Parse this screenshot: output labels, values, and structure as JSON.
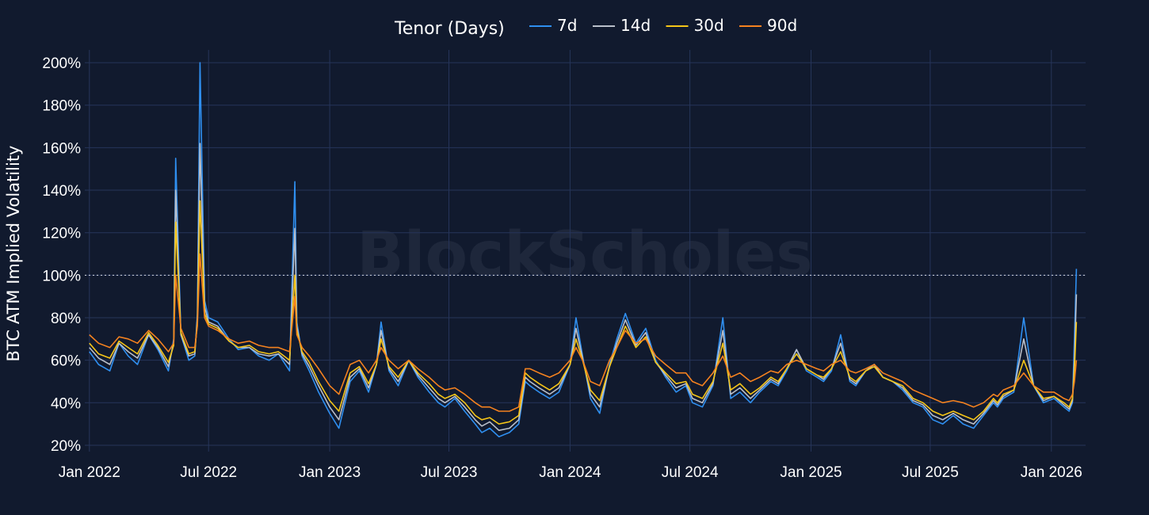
{
  "chart_data": {
    "type": "line",
    "title": "",
    "ylabel": "BTC ATM Implied Volatility",
    "xlabel": "",
    "ylim": [
      17,
      206
    ],
    "xlim": [
      "2021-12-25",
      "2026-02-22"
    ],
    "y_ticks": [
      20,
      40,
      60,
      80,
      100,
      120,
      140,
      160,
      180,
      200
    ],
    "y_tick_labels": [
      "20%",
      "40%",
      "60%",
      "80%",
      "100%",
      "120%",
      "140%",
      "160%",
      "180%",
      "200%"
    ],
    "x_ticks": [
      "2022-01-01",
      "2022-07-01",
      "2023-01-01",
      "2023-07-01",
      "2024-01-01",
      "2024-07-01",
      "2025-01-01",
      "2025-07-01",
      "2026-01-01"
    ],
    "x_tick_labels": [
      "Jan 2022",
      "Jul 2022",
      "Jan 2023",
      "Jul 2023",
      "Jan 2024",
      "Jul 2024",
      "Jan 2025",
      "Jul 2025",
      "Jan 2026"
    ],
    "reference_line": {
      "y": 100,
      "style": "dotted"
    },
    "grid": true,
    "legend": {
      "title": "Tenor (Days)",
      "placement": "top-center"
    },
    "watermark": "BlockScholes",
    "background": "#111a2e",
    "grid_color": "#26355a",
    "series": [
      {
        "name": "7d",
        "color": "#2f8ff0",
        "x": [
          "2022-01-01",
          "2022-01-15",
          "2022-02-01",
          "2022-02-15",
          "2022-03-01",
          "2022-03-15",
          "2022-04-01",
          "2022-04-15",
          "2022-05-01",
          "2022-05-09",
          "2022-05-12",
          "2022-05-20",
          "2022-06-01",
          "2022-06-10",
          "2022-06-14",
          "2022-06-18",
          "2022-06-25",
          "2022-07-01",
          "2022-07-15",
          "2022-08-01",
          "2022-08-15",
          "2022-09-01",
          "2022-09-15",
          "2022-10-01",
          "2022-10-15",
          "2022-11-01",
          "2022-11-09",
          "2022-11-12",
          "2022-11-20",
          "2022-12-01",
          "2022-12-15",
          "2023-01-01",
          "2023-01-15",
          "2023-02-01",
          "2023-02-15",
          "2023-03-01",
          "2023-03-13",
          "2023-03-20",
          "2023-04-01",
          "2023-04-15",
          "2023-05-01",
          "2023-05-15",
          "2023-06-01",
          "2023-06-15",
          "2023-06-25",
          "2023-07-10",
          "2023-07-25",
          "2023-08-10",
          "2023-08-20",
          "2023-09-01",
          "2023-09-15",
          "2023-10-01",
          "2023-10-15",
          "2023-10-25",
          "2023-11-01",
          "2023-11-15",
          "2023-12-01",
          "2023-12-15",
          "2024-01-01",
          "2024-01-10",
          "2024-01-20",
          "2024-02-01",
          "2024-02-15",
          "2024-03-01",
          "2024-03-12",
          "2024-03-25",
          "2024-04-10",
          "2024-04-25",
          "2024-05-10",
          "2024-05-25",
          "2024-06-10",
          "2024-06-25",
          "2024-07-05",
          "2024-07-20",
          "2024-08-05",
          "2024-08-20",
          "2024-09-01",
          "2024-09-15",
          "2024-10-01",
          "2024-10-15",
          "2024-11-01",
          "2024-11-12",
          "2024-11-25",
          "2024-12-10",
          "2024-12-25",
          "2025-01-10",
          "2025-01-20",
          "2025-02-01",
          "2025-02-15",
          "2025-03-01",
          "2025-03-10",
          "2025-03-25",
          "2025-04-07",
          "2025-04-20",
          "2025-05-05",
          "2025-05-20",
          "2025-06-05",
          "2025-06-20",
          "2025-07-05",
          "2025-07-20",
          "2025-08-05",
          "2025-08-20",
          "2025-09-05",
          "2025-09-20",
          "2025-10-05",
          "2025-10-11",
          "2025-10-20",
          "2025-11-05",
          "2025-11-20",
          "2025-12-05",
          "2025-12-20",
          "2026-01-05",
          "2026-01-20",
          "2026-01-28",
          "2026-02-02",
          "2026-02-05",
          "2026-02-08"
        ],
        "y": [
          64,
          58,
          55,
          68,
          62,
          58,
          72,
          65,
          55,
          70,
          155,
          72,
          60,
          62,
          82,
          200,
          88,
          80,
          78,
          70,
          65,
          66,
          62,
          60,
          63,
          55,
          144,
          78,
          62,
          55,
          45,
          35,
          28,
          50,
          55,
          45,
          58,
          78,
          55,
          48,
          60,
          52,
          45,
          40,
          38,
          42,
          36,
          30,
          26,
          28,
          24,
          26,
          30,
          50,
          48,
          45,
          42,
          45,
          58,
          80,
          62,
          42,
          35,
          58,
          70,
          82,
          68,
          75,
          60,
          52,
          45,
          48,
          40,
          38,
          48,
          80,
          42,
          45,
          40,
          45,
          50,
          48,
          55,
          65,
          55,
          52,
          50,
          55,
          72,
          50,
          48,
          55,
          58,
          52,
          50,
          46,
          40,
          38,
          32,
          30,
          34,
          30,
          28,
          34,
          40,
          38,
          42,
          45,
          80,
          48,
          40,
          42,
          38,
          36,
          40,
          70,
          103
        ]
      },
      {
        "name": "14d",
        "color": "#b9bfca",
        "x": [
          "2022-01-01",
          "2022-01-15",
          "2022-02-01",
          "2022-02-15",
          "2022-03-01",
          "2022-03-15",
          "2022-04-01",
          "2022-04-15",
          "2022-05-01",
          "2022-05-09",
          "2022-05-12",
          "2022-05-20",
          "2022-06-01",
          "2022-06-10",
          "2022-06-14",
          "2022-06-18",
          "2022-06-25",
          "2022-07-01",
          "2022-07-15",
          "2022-08-01",
          "2022-08-15",
          "2022-09-01",
          "2022-09-15",
          "2022-10-01",
          "2022-10-15",
          "2022-11-01",
          "2022-11-09",
          "2022-11-12",
          "2022-11-20",
          "2022-12-01",
          "2022-12-15",
          "2023-01-01",
          "2023-01-15",
          "2023-02-01",
          "2023-02-15",
          "2023-03-01",
          "2023-03-13",
          "2023-03-20",
          "2023-04-01",
          "2023-04-15",
          "2023-05-01",
          "2023-05-15",
          "2023-06-01",
          "2023-06-15",
          "2023-06-25",
          "2023-07-10",
          "2023-07-25",
          "2023-08-10",
          "2023-08-20",
          "2023-09-01",
          "2023-09-15",
          "2023-10-01",
          "2023-10-15",
          "2023-10-25",
          "2023-11-01",
          "2023-11-15",
          "2023-12-01",
          "2023-12-15",
          "2024-01-01",
          "2024-01-10",
          "2024-01-20",
          "2024-02-01",
          "2024-02-15",
          "2024-03-01",
          "2024-03-12",
          "2024-03-25",
          "2024-04-10",
          "2024-04-25",
          "2024-05-10",
          "2024-05-25",
          "2024-06-10",
          "2024-06-25",
          "2024-07-05",
          "2024-07-20",
          "2024-08-05",
          "2024-08-20",
          "2024-09-01",
          "2024-09-15",
          "2024-10-01",
          "2024-10-15",
          "2024-11-01",
          "2024-11-12",
          "2024-11-25",
          "2024-12-10",
          "2024-12-25",
          "2025-01-10",
          "2025-01-20",
          "2025-02-01",
          "2025-02-15",
          "2025-03-01",
          "2025-03-10",
          "2025-03-25",
          "2025-04-07",
          "2025-04-20",
          "2025-05-05",
          "2025-05-20",
          "2025-06-05",
          "2025-06-20",
          "2025-07-05",
          "2025-07-20",
          "2025-08-05",
          "2025-08-20",
          "2025-09-05",
          "2025-09-20",
          "2025-10-05",
          "2025-10-11",
          "2025-10-20",
          "2025-11-05",
          "2025-11-20",
          "2025-12-05",
          "2025-12-20",
          "2026-01-05",
          "2026-01-20",
          "2026-01-28",
          "2026-02-02",
          "2026-02-05",
          "2026-02-08"
        ],
        "y": [
          66,
          61,
          58,
          68,
          64,
          61,
          72,
          66,
          57,
          68,
          140,
          72,
          62,
          63,
          80,
          162,
          85,
          78,
          76,
          69,
          66,
          66,
          63,
          62,
          63,
          58,
          122,
          76,
          63,
          57,
          48,
          38,
          32,
          52,
          56,
          47,
          58,
          74,
          56,
          50,
          60,
          53,
          47,
          42,
          40,
          43,
          38,
          32,
          29,
          31,
          27,
          28,
          32,
          52,
          50,
          47,
          44,
          47,
          58,
          75,
          61,
          44,
          38,
          57,
          68,
          79,
          67,
          73,
          59,
          53,
          47,
          49,
          42,
          40,
          49,
          74,
          44,
          47,
          42,
          46,
          51,
          49,
          56,
          65,
          56,
          53,
          51,
          56,
          68,
          51,
          49,
          55,
          58,
          52,
          50,
          47,
          41,
          39,
          34,
          32,
          35,
          32,
          30,
          35,
          41,
          39,
          43,
          46,
          70,
          48,
          41,
          43,
          39,
          37,
          41,
          60,
          91
        ]
      },
      {
        "name": "30d",
        "color": "#f5c518",
        "x": [
          "2022-01-01",
          "2022-01-15",
          "2022-02-01",
          "2022-02-15",
          "2022-03-01",
          "2022-03-15",
          "2022-04-01",
          "2022-04-15",
          "2022-05-01",
          "2022-05-09",
          "2022-05-12",
          "2022-05-20",
          "2022-06-01",
          "2022-06-10",
          "2022-06-14",
          "2022-06-18",
          "2022-06-25",
          "2022-07-01",
          "2022-07-15",
          "2022-08-01",
          "2022-08-15",
          "2022-09-01",
          "2022-09-15",
          "2022-10-01",
          "2022-10-15",
          "2022-11-01",
          "2022-11-09",
          "2022-11-12",
          "2022-11-20",
          "2022-12-01",
          "2022-12-15",
          "2023-01-01",
          "2023-01-15",
          "2023-02-01",
          "2023-02-15",
          "2023-03-01",
          "2023-03-13",
          "2023-03-20",
          "2023-04-01",
          "2023-04-15",
          "2023-05-01",
          "2023-05-15",
          "2023-06-01",
          "2023-06-15",
          "2023-06-25",
          "2023-07-10",
          "2023-07-25",
          "2023-08-10",
          "2023-08-20",
          "2023-09-01",
          "2023-09-15",
          "2023-10-01",
          "2023-10-15",
          "2023-10-25",
          "2023-11-01",
          "2023-11-15",
          "2023-12-01",
          "2023-12-15",
          "2024-01-01",
          "2024-01-10",
          "2024-01-20",
          "2024-02-01",
          "2024-02-15",
          "2024-03-01",
          "2024-03-12",
          "2024-03-25",
          "2024-04-10",
          "2024-04-25",
          "2024-05-10",
          "2024-05-25",
          "2024-06-10",
          "2024-06-25",
          "2024-07-05",
          "2024-07-20",
          "2024-08-05",
          "2024-08-20",
          "2024-09-01",
          "2024-09-15",
          "2024-10-01",
          "2024-10-15",
          "2024-11-01",
          "2024-11-12",
          "2024-11-25",
          "2024-12-10",
          "2024-12-25",
          "2025-01-10",
          "2025-01-20",
          "2025-02-01",
          "2025-02-15",
          "2025-03-01",
          "2025-03-10",
          "2025-03-25",
          "2025-04-07",
          "2025-04-20",
          "2025-05-05",
          "2025-05-20",
          "2025-06-05",
          "2025-06-20",
          "2025-07-05",
          "2025-07-20",
          "2025-08-05",
          "2025-08-20",
          "2025-09-05",
          "2025-09-20",
          "2025-10-05",
          "2025-10-11",
          "2025-10-20",
          "2025-11-05",
          "2025-11-20",
          "2025-12-05",
          "2025-12-20",
          "2026-01-05",
          "2026-01-20",
          "2026-01-28",
          "2026-02-02",
          "2026-02-05",
          "2026-02-08"
        ],
        "y": [
          68,
          63,
          61,
          69,
          66,
          63,
          73,
          67,
          59,
          67,
          125,
          73,
          63,
          64,
          78,
          135,
          82,
          77,
          75,
          69,
          66,
          67,
          64,
          63,
          64,
          60,
          100,
          74,
          64,
          59,
          50,
          41,
          36,
          54,
          57,
          49,
          58,
          70,
          57,
          52,
          60,
          54,
          49,
          44,
          42,
          44,
          40,
          34,
          32,
          33,
          30,
          31,
          34,
          54,
          52,
          49,
          46,
          49,
          58,
          70,
          60,
          46,
          41,
          57,
          66,
          76,
          66,
          71,
          59,
          54,
          49,
          50,
          44,
          42,
          50,
          68,
          46,
          49,
          44,
          47,
          52,
          50,
          56,
          63,
          56,
          53,
          52,
          56,
          64,
          52,
          50,
          55,
          57,
          52,
          50,
          48,
          42,
          40,
          36,
          34,
          36,
          34,
          32,
          36,
          42,
          40,
          44,
          46,
          60,
          48,
          42,
          43,
          40,
          38,
          42,
          55,
          78
        ]
      },
      {
        "name": "90d",
        "color": "#f5821f",
        "x": [
          "2022-01-01",
          "2022-01-15",
          "2022-02-01",
          "2022-02-15",
          "2022-03-01",
          "2022-03-15",
          "2022-04-01",
          "2022-04-15",
          "2022-05-01",
          "2022-05-09",
          "2022-05-12",
          "2022-05-20",
          "2022-06-01",
          "2022-06-10",
          "2022-06-14",
          "2022-06-18",
          "2022-06-25",
          "2022-07-01",
          "2022-07-15",
          "2022-08-01",
          "2022-08-15",
          "2022-09-01",
          "2022-09-15",
          "2022-10-01",
          "2022-10-15",
          "2022-11-01",
          "2022-11-09",
          "2022-11-12",
          "2022-11-20",
          "2022-12-01",
          "2022-12-15",
          "2023-01-01",
          "2023-01-15",
          "2023-02-01",
          "2023-02-15",
          "2023-03-01",
          "2023-03-13",
          "2023-03-20",
          "2023-04-01",
          "2023-04-15",
          "2023-05-01",
          "2023-05-15",
          "2023-06-01",
          "2023-06-15",
          "2023-06-25",
          "2023-07-10",
          "2023-07-25",
          "2023-08-10",
          "2023-08-20",
          "2023-09-01",
          "2023-09-15",
          "2023-10-01",
          "2023-10-15",
          "2023-10-25",
          "2023-11-01",
          "2023-11-15",
          "2023-12-01",
          "2023-12-15",
          "2024-01-01",
          "2024-01-10",
          "2024-01-20",
          "2024-02-01",
          "2024-02-15",
          "2024-03-01",
          "2024-03-12",
          "2024-03-25",
          "2024-04-10",
          "2024-04-25",
          "2024-05-10",
          "2024-05-25",
          "2024-06-10",
          "2024-06-25",
          "2024-07-05",
          "2024-07-20",
          "2024-08-05",
          "2024-08-20",
          "2024-09-01",
          "2024-09-15",
          "2024-10-01",
          "2024-10-15",
          "2024-11-01",
          "2024-11-12",
          "2024-11-25",
          "2024-12-10",
          "2024-12-25",
          "2025-01-10",
          "2025-01-20",
          "2025-02-01",
          "2025-02-15",
          "2025-03-01",
          "2025-03-10",
          "2025-03-25",
          "2025-04-07",
          "2025-04-20",
          "2025-05-05",
          "2025-05-20",
          "2025-06-05",
          "2025-06-20",
          "2025-07-05",
          "2025-07-20",
          "2025-08-05",
          "2025-08-20",
          "2025-09-05",
          "2025-09-20",
          "2025-10-05",
          "2025-10-11",
          "2025-10-20",
          "2025-11-05",
          "2025-11-20",
          "2025-12-05",
          "2025-12-20",
          "2026-01-05",
          "2026-01-20",
          "2026-01-28",
          "2026-02-02",
          "2026-02-05",
          "2026-02-08"
        ],
        "y": [
          72,
          68,
          66,
          71,
          70,
          68,
          74,
          70,
          64,
          68,
          100,
          75,
          66,
          66,
          76,
          110,
          80,
          76,
          74,
          70,
          68,
          69,
          67,
          66,
          66,
          64,
          90,
          72,
          66,
          62,
          56,
          48,
          44,
          58,
          60,
          54,
          60,
          66,
          60,
          56,
          60,
          56,
          52,
          48,
          46,
          47,
          44,
          40,
          38,
          38,
          36,
          36,
          38,
          56,
          56,
          54,
          52,
          54,
          60,
          66,
          60,
          50,
          48,
          60,
          66,
          74,
          68,
          70,
          62,
          58,
          54,
          54,
          50,
          48,
          54,
          62,
          52,
          54,
          50,
          52,
          55,
          54,
          58,
          60,
          58,
          56,
          55,
          58,
          60,
          55,
          54,
          56,
          58,
          54,
          52,
          50,
          46,
          44,
          42,
          40,
          41,
          40,
          38,
          40,
          44,
          43,
          46,
          48,
          54,
          48,
          45,
          45,
          42,
          41,
          44,
          50,
          60
        ]
      }
    ]
  }
}
